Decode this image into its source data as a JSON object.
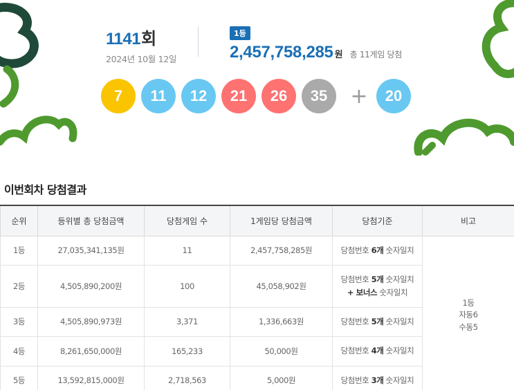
{
  "draw": {
    "number": "1141",
    "suffix": "회",
    "date": "2024년 10월 12일"
  },
  "first_prize": {
    "badge": "1등",
    "amount": "2,457,758,285",
    "unit": "원",
    "count_text": "총 11게임 당첨"
  },
  "balls": [
    {
      "number": "7",
      "color": "#fbc400"
    },
    {
      "number": "11",
      "color": "#69c8f2"
    },
    {
      "number": "12",
      "color": "#69c8f2"
    },
    {
      "number": "21",
      "color": "#ff7272"
    },
    {
      "number": "26",
      "color": "#ff7272"
    },
    {
      "number": "35",
      "color": "#aaaaaa"
    }
  ],
  "plus_symbol": "+",
  "bonus_ball": {
    "number": "20",
    "color": "#69c8f2"
  },
  "section_title": "이번회차 당첨결과",
  "table": {
    "headers": [
      "순위",
      "등위별 총 당첨금액",
      "당첨게임 수",
      "1게임당 당첨금액",
      "당첨기준",
      "비고"
    ],
    "rows": [
      {
        "rank": "1등",
        "total": "27,035,341,135원",
        "games": "11",
        "per_game": "2,457,758,285원",
        "crit_pre": "당첨번호 ",
        "crit_bold": "6개",
        "crit_post": " 숫자일치",
        "crit_line2": ""
      },
      {
        "rank": "2등",
        "total": "4,505,890,200원",
        "games": "100",
        "per_game": "45,058,902원",
        "crit_pre": "당첨번호 ",
        "crit_bold": "5개",
        "crit_post": " 숫자일치",
        "crit_line2_bold": "+ 보너스",
        "crit_line2": " 숫자일치"
      },
      {
        "rank": "3등",
        "total": "4,505,890,973원",
        "games": "3,371",
        "per_game": "1,336,663원",
        "crit_pre": "당첨번호 ",
        "crit_bold": "5개",
        "crit_post": " 숫자일치",
        "crit_line2": ""
      },
      {
        "rank": "4등",
        "total": "8,261,650,000원",
        "games": "165,233",
        "per_game": "50,000원",
        "crit_pre": "당첨번호 ",
        "crit_bold": "4개",
        "crit_post": " 숫자일치",
        "crit_line2": ""
      },
      {
        "rank": "5등",
        "total": "13,592,815,000원",
        "games": "2,718,563",
        "per_game": "5,000원",
        "crit_pre": "당첨번호 ",
        "crit_bold": "3개",
        "crit_post": " 숫자일치",
        "crit_line2": ""
      }
    ],
    "note": {
      "line1": "1등",
      "line2": "자동6",
      "line3": "수동5"
    }
  },
  "colors": {
    "accent_blue": "#1a6fb5",
    "clover_green": "#4e9a2e",
    "clover_dark": "#1f4a3a"
  }
}
